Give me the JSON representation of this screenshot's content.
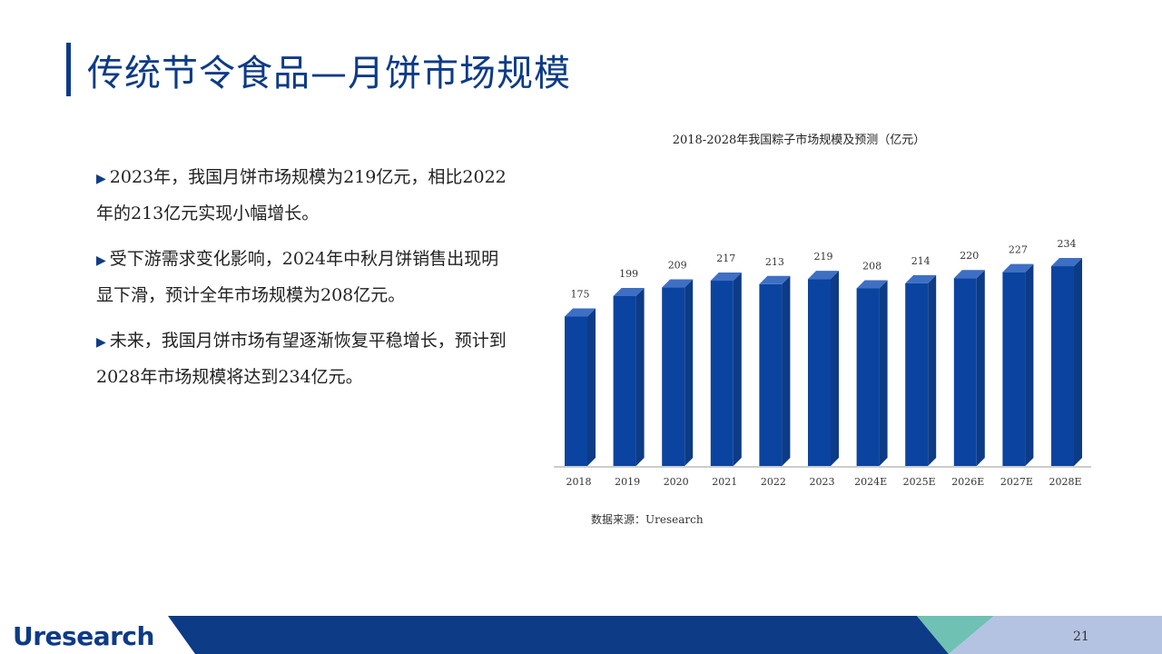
{
  "page": {
    "title": "传统节令食品—月饼市场规模",
    "bullets": [
      "2023年，我国月饼市场规模为219亿元，相比2022年的213亿元实现小幅增长。",
      "受下游需求变化影响，2024年中秋月饼销售出现明显下滑，预计全年市场规模为208亿元。",
      "未来，我国月饼市场有望逐渐恢复平稳增长，预计到2028年市场规模将达到234亿元。"
    ],
    "bullet_marker": "▶",
    "source": "数据来源：Uresearch",
    "logo": {
      "first": "U",
      "rest": "research"
    },
    "page_number": "21"
  },
  "chart_data": {
    "type": "bar",
    "title": "2018-2028年我国粽子市场规模及预测（亿元）",
    "categories": [
      "2018",
      "2019",
      "2020",
      "2021",
      "2022",
      "2023",
      "2024E",
      "2025E",
      "2026E",
      "2027E",
      "2028E"
    ],
    "values": [
      175,
      199,
      209,
      217,
      213,
      219,
      208,
      214,
      220,
      227,
      234
    ],
    "xlabel": "",
    "ylabel": "",
    "ylim": [
      0,
      250
    ],
    "grid": false,
    "legend": "none",
    "colors": {
      "bar_front": "#0a44a0",
      "bar_side": "#0d3b86",
      "bar_top": "#3e6fc4",
      "axis": "#999999"
    }
  },
  "theme": {
    "primary": "#0d3b86",
    "accent_teal": "#6fc1b4",
    "footer_light": "#b5c3e3"
  }
}
